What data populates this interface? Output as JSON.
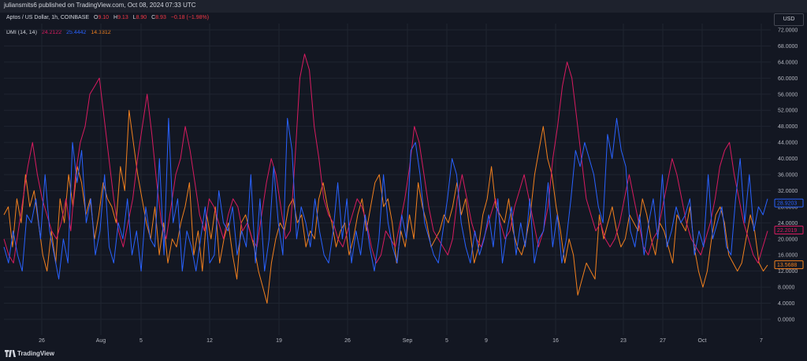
{
  "header": {
    "publish_text": "juliansmits6 published on TradingView.com, Oct 08, 2024 07:33 UTC"
  },
  "symbol": {
    "name": "Aptos / US Dollar, 1h, COINBASE",
    "o_label": "O",
    "o_value": "9.10",
    "h_label": "H",
    "h_value": "9.13",
    "l_label": "L",
    "l_value": "8.90",
    "c_label": "C",
    "c_value": "8.93",
    "change": "−0.18 (−1.98%)"
  },
  "indicator": {
    "name": "DMI (14, 14)",
    "v1": "24.2122",
    "v2": "25.4442",
    "v3": "14.1312"
  },
  "currency_button": "USD",
  "footer": {
    "brand": "TradingView"
  },
  "colors": {
    "background": "#131722",
    "grid": "#1f2430",
    "plus_di": "#2962ff",
    "minus_di": "#f2801e",
    "adx": "#d81b60",
    "up": "#089981",
    "down": "#f23645",
    "axis_text": "#b2b5be"
  },
  "chart_data": {
    "type": "line",
    "title": "DMI (14, 14)",
    "x_ticks": [
      "26",
      "Aug",
      "5",
      "12",
      "19",
      "26",
      "Sep",
      "5",
      "9",
      "16",
      "23",
      "27",
      "Oct",
      "7"
    ],
    "y_ticks": [
      "72.0000",
      "68.0000",
      "64.0000",
      "60.0000",
      "56.0000",
      "52.0000",
      "48.0000",
      "44.0000",
      "40.0000",
      "36.0000",
      "32.0000",
      "28.0000",
      "24.0000",
      "20.0000",
      "16.0000",
      "12.0000",
      "8.0000",
      "4.0000",
      "0.0000"
    ],
    "ylim": [
      0,
      72
    ],
    "grid": true,
    "series": [
      {
        "color": "#2962ff",
        "last_label": "28.9203",
        "values": [
          18,
          14,
          22,
          16,
          12,
          26,
          24,
          30,
          20,
          36,
          22,
          16,
          10,
          20,
          14,
          44,
          34,
          42,
          24,
          30,
          16,
          22,
          36,
          18,
          14,
          24,
          20,
          30,
          16,
          22,
          12,
          28,
          20,
          18,
          40,
          16,
          50,
          24,
          30,
          12,
          22,
          18,
          12,
          20,
          28,
          14,
          16,
          32,
          24,
          22,
          28,
          16,
          22,
          18,
          36,
          14,
          30,
          12,
          20,
          38,
          24,
          16,
          50,
          42,
          20,
          28,
          24,
          18,
          30,
          22,
          16,
          14,
          22,
          34,
          20,
          30,
          14,
          22,
          16,
          26,
          18,
          12,
          20,
          36,
          24,
          18,
          14,
          26,
          20,
          42,
          44,
          36,
          24,
          20,
          16,
          14,
          22,
          30,
          40,
          36,
          24,
          18,
          14,
          22,
          16,
          20,
          26,
          18,
          30,
          14,
          22,
          28,
          16,
          24,
          18,
          30,
          14,
          20,
          22,
          34,
          18,
          26,
          14,
          20,
          30,
          42,
          38,
          44,
          40,
          36,
          28,
          24,
          46,
          40,
          50,
          42,
          38,
          22,
          18,
          26,
          16,
          24,
          30,
          20,
          36,
          18,
          22,
          28,
          24,
          26,
          30,
          16,
          22,
          18,
          36,
          20,
          24,
          28,
          18,
          16,
          30,
          40,
          24,
          36,
          22,
          28,
          26,
          30
        ]
      },
      {
        "color": "#f2801e",
        "last_label": "13.5688",
        "values": [
          26,
          28,
          18,
          30,
          24,
          36,
          28,
          32,
          24,
          16,
          12,
          22,
          14,
          30,
          24,
          36,
          28,
          38,
          34,
          26,
          30,
          20,
          26,
          34,
          30,
          28,
          24,
          38,
          32,
          52,
          44,
          36,
          30,
          24,
          20,
          28,
          16,
          24,
          14,
          20,
          18,
          24,
          28,
          34,
          16,
          22,
          12,
          26,
          20,
          28,
          14,
          20,
          24,
          16,
          10,
          24,
          26,
          22,
          18,
          12,
          8,
          4,
          14,
          20,
          24,
          22,
          28,
          30,
          24,
          26,
          18,
          22,
          20,
          30,
          34,
          28,
          24,
          18,
          22,
          24,
          16,
          20,
          26,
          30,
          22,
          28,
          34,
          36,
          28,
          30,
          24,
          14,
          22,
          18,
          26,
          20,
          34,
          28,
          24,
          18,
          20,
          22,
          26,
          24,
          28,
          34,
          26,
          30,
          22,
          14,
          18,
          26,
          30,
          38,
          28,
          26,
          24,
          30,
          22,
          18,
          16,
          20,
          26,
          36,
          42,
          48,
          40,
          36,
          28,
          22,
          14,
          20,
          16,
          6,
          10,
          14,
          12,
          10,
          26,
          20,
          24,
          28,
          22,
          18,
          20,
          26,
          24,
          22,
          30,
          26,
          20,
          16,
          24,
          22,
          18,
          14,
          26,
          24,
          22,
          28,
          18,
          12,
          8,
          12,
          20,
          26,
          28,
          24,
          16,
          14,
          12,
          14,
          20,
          26,
          22,
          14,
          12,
          13.5
        ]
      },
      {
        "color": "#d81b60",
        "last_label": "22.2019",
        "values": [
          20,
          16,
          14,
          22,
          30,
          38,
          44,
          36,
          30,
          26,
          22,
          20,
          24,
          30,
          22,
          36,
          44,
          48,
          56,
          58,
          60,
          50,
          40,
          30,
          22,
          18,
          24,
          30,
          40,
          48,
          56,
          46,
          34,
          24,
          20,
          28,
          36,
          40,
          48,
          42,
          34,
          26,
          22,
          30,
          28,
          24,
          20,
          26,
          30,
          28,
          22,
          24,
          20,
          18,
          26,
          34,
          40,
          36,
          28,
          20,
          22,
          40,
          60,
          66,
          62,
          48,
          40,
          30,
          26,
          24,
          20,
          18,
          22,
          26,
          30,
          28,
          24,
          18,
          14,
          16,
          22,
          20,
          18,
          24,
          30,
          38,
          48,
          44,
          36,
          28,
          22,
          20,
          18,
          16,
          20,
          30,
          36,
          30,
          24,
          20,
          18,
          22,
          26,
          30,
          24,
          20,
          22,
          28,
          32,
          36,
          30,
          24,
          18,
          22,
          28,
          40,
          48,
          58,
          64,
          60,
          50,
          40,
          30,
          26,
          22,
          24,
          20,
          18,
          20,
          24,
          30,
          36,
          30,
          24,
          18,
          16,
          20,
          22,
          28,
          34,
          40,
          36,
          30,
          24,
          20,
          18,
          16,
          20,
          24,
          30,
          38,
          42,
          44,
          36,
          30,
          24,
          20,
          16,
          14,
          18,
          22
        ]
      }
    ]
  }
}
